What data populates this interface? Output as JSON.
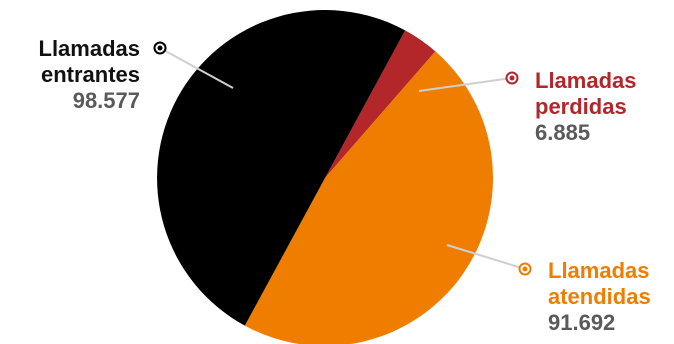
{
  "chart_data": {
    "type": "pie",
    "slices": [
      {
        "label_line1": "Llamadas",
        "label_line2": "entrantes",
        "value_text": "98.577",
        "value": 98577,
        "color": "#000000"
      },
      {
        "label_line1": "Llamadas",
        "label_line2": "perdidas",
        "value_text": "6.885",
        "value": 6885,
        "color": "#b3262a"
      },
      {
        "label_line1": "Llamadas",
        "label_line2": "atendidas",
        "value_text": "91.692",
        "value": 91692,
        "color": "#ef7d00"
      }
    ]
  }
}
